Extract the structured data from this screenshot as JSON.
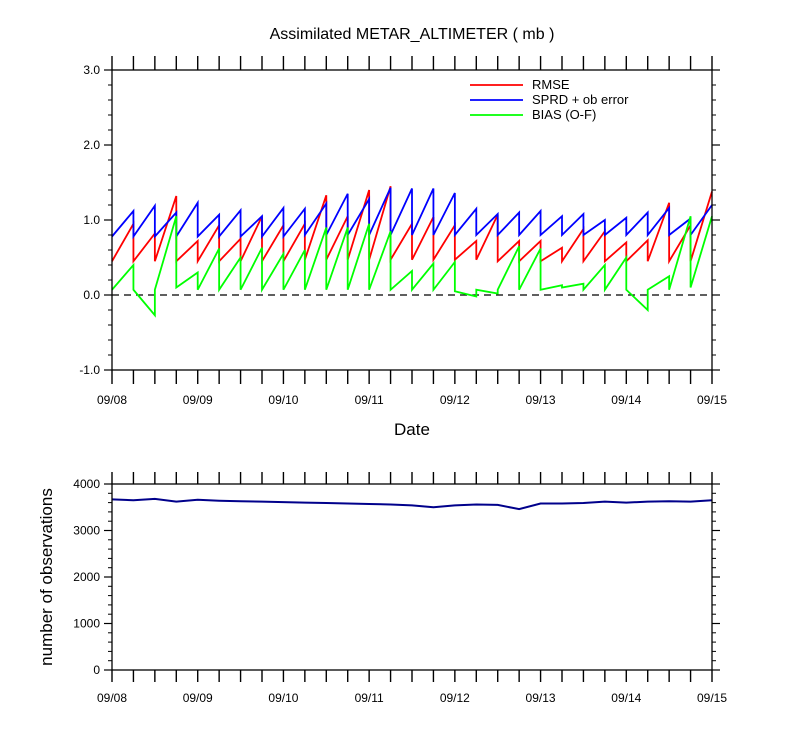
{
  "chart_data": [
    {
      "type": "line",
      "title": "Assimilated METAR_ALTIMETER ( mb )",
      "xlabel": "Date",
      "ylabel": "",
      "ylim": [
        -1.0,
        3.0
      ],
      "yticks": [
        "-1.0",
        "0.0",
        "1.0",
        "2.0",
        "3.0"
      ],
      "xtick_labels": [
        "09/08",
        "09/09",
        "09/10",
        "09/11",
        "09/12",
        "09/13",
        "09/14",
        "09/15"
      ],
      "xlim_days": [
        0,
        7
      ],
      "zero_line": true,
      "legend_position": "top-right",
      "series": [
        {
          "name": "RMSE",
          "color": "#ff0000",
          "points": [
            [
              0,
              0.45
            ],
            [
              0.25,
              0.95
            ],
            [
              0.25,
              0.45
            ],
            [
              0.5,
              0.82
            ],
            [
              0.5,
              0.45
            ],
            [
              0.75,
              1.32
            ],
            [
              0.75,
              0.45
            ],
            [
              1,
              0.72
            ],
            [
              1,
              0.45
            ],
            [
              1.25,
              0.93
            ],
            [
              1.25,
              0.45
            ],
            [
              1.5,
              0.75
            ],
            [
              1.5,
              0.45
            ],
            [
              1.75,
              1.05
            ],
            [
              1.75,
              0.45
            ],
            [
              2,
              0.93
            ],
            [
              2,
              0.45
            ],
            [
              2.25,
              0.95
            ],
            [
              2.25,
              0.47
            ],
            [
              2.5,
              1.33
            ],
            [
              2.5,
              0.47
            ],
            [
              2.75,
              1.05
            ],
            [
              2.75,
              0.47
            ],
            [
              3,
              1.4
            ],
            [
              3,
              0.47
            ],
            [
              3.25,
              1.45
            ],
            [
              3.25,
              0.47
            ],
            [
              3.5,
              0.95
            ],
            [
              3.5,
              0.47
            ],
            [
              3.75,
              1.04
            ],
            [
              3.75,
              0.47
            ],
            [
              4,
              0.93
            ],
            [
              4,
              0.47
            ],
            [
              4.25,
              0.72
            ],
            [
              4.25,
              0.47
            ],
            [
              4.5,
              1.07
            ],
            [
              4.5,
              0.45
            ],
            [
              4.75,
              0.72
            ],
            [
              4.75,
              0.45
            ],
            [
              5,
              0.72
            ],
            [
              5,
              0.45
            ],
            [
              5.25,
              0.63
            ],
            [
              5.25,
              0.45
            ],
            [
              5.5,
              0.88
            ],
            [
              5.5,
              0.45
            ],
            [
              5.75,
              0.85
            ],
            [
              5.75,
              0.45
            ],
            [
              6,
              0.7
            ],
            [
              6,
              0.45
            ],
            [
              6.25,
              0.73
            ],
            [
              6.25,
              0.45
            ],
            [
              6.5,
              1.23
            ],
            [
              6.5,
              0.45
            ],
            [
              6.75,
              0.93
            ],
            [
              6.75,
              0.45
            ],
            [
              7,
              1.38
            ]
          ]
        },
        {
          "name": "SPRD + ob error",
          "color": "#0000ff",
          "points": [
            [
              0,
              0.78
            ],
            [
              0.25,
              1.12
            ],
            [
              0.25,
              0.78
            ],
            [
              0.5,
              1.19
            ],
            [
              0.5,
              0.78
            ],
            [
              0.75,
              1.1
            ],
            [
              0.75,
              0.78
            ],
            [
              1,
              1.23
            ],
            [
              1,
              0.78
            ],
            [
              1.25,
              1.07
            ],
            [
              1.25,
              0.78
            ],
            [
              1.5,
              1.13
            ],
            [
              1.5,
              0.78
            ],
            [
              1.75,
              1.05
            ],
            [
              1.75,
              0.78
            ],
            [
              2,
              1.16
            ],
            [
              2,
              0.78
            ],
            [
              2.25,
              1.15
            ],
            [
              2.25,
              0.8
            ],
            [
              2.5,
              1.22
            ],
            [
              2.5,
              0.8
            ],
            [
              2.75,
              1.35
            ],
            [
              2.75,
              0.8
            ],
            [
              3,
              1.28
            ],
            [
              3,
              0.8
            ],
            [
              3.25,
              1.43
            ],
            [
              3.25,
              0.8
            ],
            [
              3.5,
              1.42
            ],
            [
              3.5,
              0.8
            ],
            [
              3.75,
              1.42
            ],
            [
              3.75,
              0.8
            ],
            [
              4,
              1.36
            ],
            [
              4,
              0.8
            ],
            [
              4.25,
              1.15
            ],
            [
              4.25,
              0.8
            ],
            [
              4.5,
              1.08
            ],
            [
              4.5,
              0.8
            ],
            [
              4.75,
              1.1
            ],
            [
              4.75,
              0.8
            ],
            [
              5,
              1.12
            ],
            [
              5,
              0.8
            ],
            [
              5.25,
              1.05
            ],
            [
              5.25,
              0.8
            ],
            [
              5.5,
              1.08
            ],
            [
              5.5,
              0.8
            ],
            [
              5.75,
              1.0
            ],
            [
              5.75,
              0.8
            ],
            [
              6,
              1.03
            ],
            [
              6,
              0.8
            ],
            [
              6.25,
              1.1
            ],
            [
              6.25,
              0.8
            ],
            [
              6.5,
              1.16
            ],
            [
              6.5,
              0.8
            ],
            [
              6.75,
              1.02
            ],
            [
              6.75,
              0.8
            ],
            [
              7,
              1.2
            ]
          ]
        },
        {
          "name": "BIAS (O-F)",
          "color": "#00ff00",
          "points": [
            [
              0,
              0.07
            ],
            [
              0.25,
              0.4
            ],
            [
              0.25,
              0.07
            ],
            [
              0.5,
              -0.27
            ],
            [
              0.5,
              0.07
            ],
            [
              0.75,
              1.05
            ],
            [
              0.75,
              0.1
            ],
            [
              1,
              0.3
            ],
            [
              1,
              0.07
            ],
            [
              1.25,
              0.62
            ],
            [
              1.25,
              0.07
            ],
            [
              1.5,
              0.5
            ],
            [
              1.5,
              0.07
            ],
            [
              1.75,
              0.63
            ],
            [
              1.75,
              0.07
            ],
            [
              2,
              0.55
            ],
            [
              2,
              0.07
            ],
            [
              2.25,
              0.6
            ],
            [
              2.25,
              0.07
            ],
            [
              2.5,
              0.9
            ],
            [
              2.5,
              0.07
            ],
            [
              2.75,
              0.9
            ],
            [
              2.75,
              0.07
            ],
            [
              3,
              0.95
            ],
            [
              3,
              0.07
            ],
            [
              3.25,
              0.85
            ],
            [
              3.25,
              0.07
            ],
            [
              3.5,
              0.32
            ],
            [
              3.5,
              0.07
            ],
            [
              3.75,
              0.42
            ],
            [
              3.75,
              0.07
            ],
            [
              4,
              0.44
            ],
            [
              4,
              0.05
            ],
            [
              4.25,
              -0.02
            ],
            [
              4.25,
              0.07
            ],
            [
              4.5,
              0.02
            ],
            [
              4.5,
              0.07
            ],
            [
              4.75,
              0.65
            ],
            [
              4.75,
              0.07
            ],
            [
              5,
              0.62
            ],
            [
              5,
              0.07
            ],
            [
              5.25,
              0.13
            ],
            [
              5.25,
              0.1
            ],
            [
              5.5,
              0.15
            ],
            [
              5.5,
              0.07
            ],
            [
              5.75,
              0.4
            ],
            [
              5.75,
              0.07
            ],
            [
              6,
              0.5
            ],
            [
              6,
              0.07
            ],
            [
              6.25,
              -0.2
            ],
            [
              6.25,
              0.07
            ],
            [
              6.5,
              0.25
            ],
            [
              6.5,
              0.07
            ],
            [
              6.75,
              1.05
            ],
            [
              6.75,
              0.1
            ],
            [
              7,
              1.05
            ]
          ]
        }
      ]
    },
    {
      "type": "line",
      "title": "",
      "xlabel": "",
      "ylabel": "number of observations",
      "ylim": [
        0,
        4000
      ],
      "yticks": [
        "0",
        "1000",
        "2000",
        "3000",
        "4000"
      ],
      "xtick_labels": [
        "09/08",
        "09/09",
        "09/10",
        "09/11",
        "09/12",
        "09/13",
        "09/14",
        "09/15"
      ],
      "xlim_days": [
        0,
        7
      ],
      "series": [
        {
          "name": "",
          "color": "#00008b",
          "points": [
            [
              0,
              3670
            ],
            [
              0.25,
              3650
            ],
            [
              0.5,
              3680
            ],
            [
              0.75,
              3620
            ],
            [
              1,
              3660
            ],
            [
              1.25,
              3640
            ],
            [
              1.5,
              3630
            ],
            [
              1.75,
              3620
            ],
            [
              2,
              3610
            ],
            [
              2.25,
              3600
            ],
            [
              2.5,
              3590
            ],
            [
              2.75,
              3580
            ],
            [
              3,
              3570
            ],
            [
              3.25,
              3560
            ],
            [
              3.5,
              3540
            ],
            [
              3.75,
              3500
            ],
            [
              4,
              3540
            ],
            [
              4.25,
              3560
            ],
            [
              4.5,
              3550
            ],
            [
              4.75,
              3460
            ],
            [
              5,
              3580
            ],
            [
              5.25,
              3580
            ],
            [
              5.5,
              3590
            ],
            [
              5.75,
              3620
            ],
            [
              6,
              3600
            ],
            [
              6.25,
              3620
            ],
            [
              6.5,
              3630
            ],
            [
              6.75,
              3620
            ],
            [
              7,
              3650
            ]
          ]
        }
      ]
    }
  ]
}
